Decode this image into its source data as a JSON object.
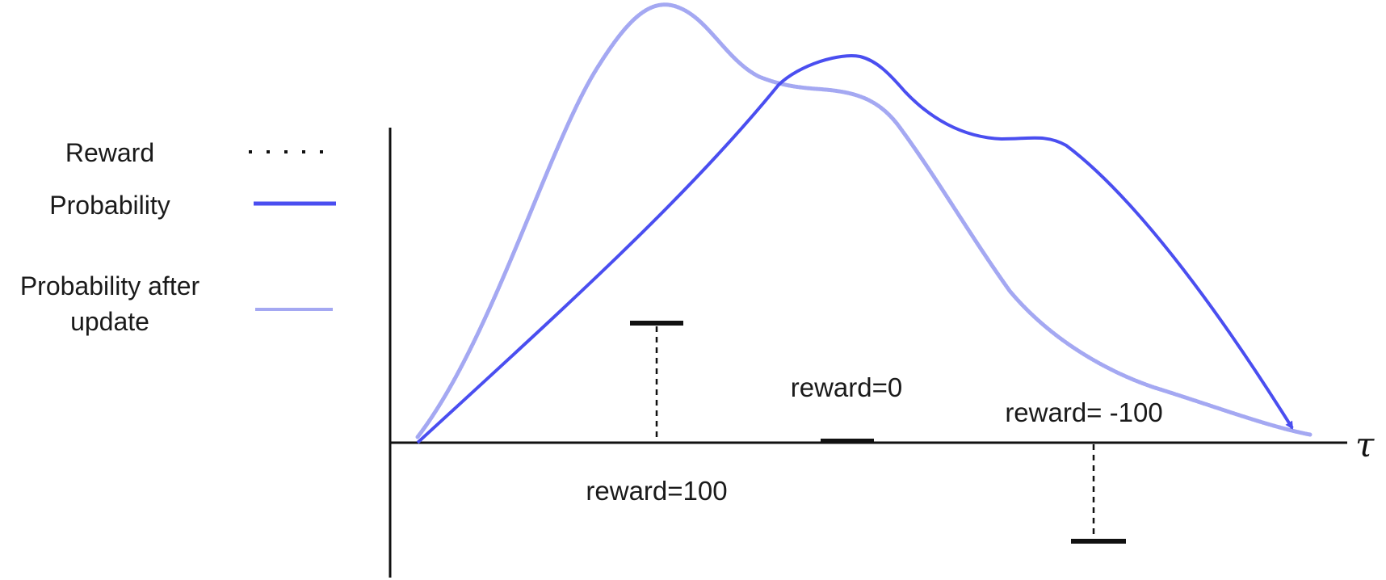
{
  "legend": {
    "items": [
      {
        "label": "Reward",
        "style": "dotted",
        "color": "#111111"
      },
      {
        "label": "Probability",
        "style": "solid",
        "color": "#4a4ef0"
      },
      {
        "label_line1": "Probability after",
        "label_line2": "update",
        "style": "faint",
        "color": "#a4a8f2"
      }
    ]
  },
  "axis": {
    "x_label": "τ"
  },
  "rewards": [
    {
      "label": "reward=100",
      "value": 100
    },
    {
      "label": "reward=0",
      "value": 0
    },
    {
      "label": "reward= -100",
      "value": -100
    }
  ],
  "colors": {
    "probability": "#4a4ef0",
    "probability_after_update": "#a4a8f2",
    "reward": "#111111",
    "axis": "#111111"
  }
}
